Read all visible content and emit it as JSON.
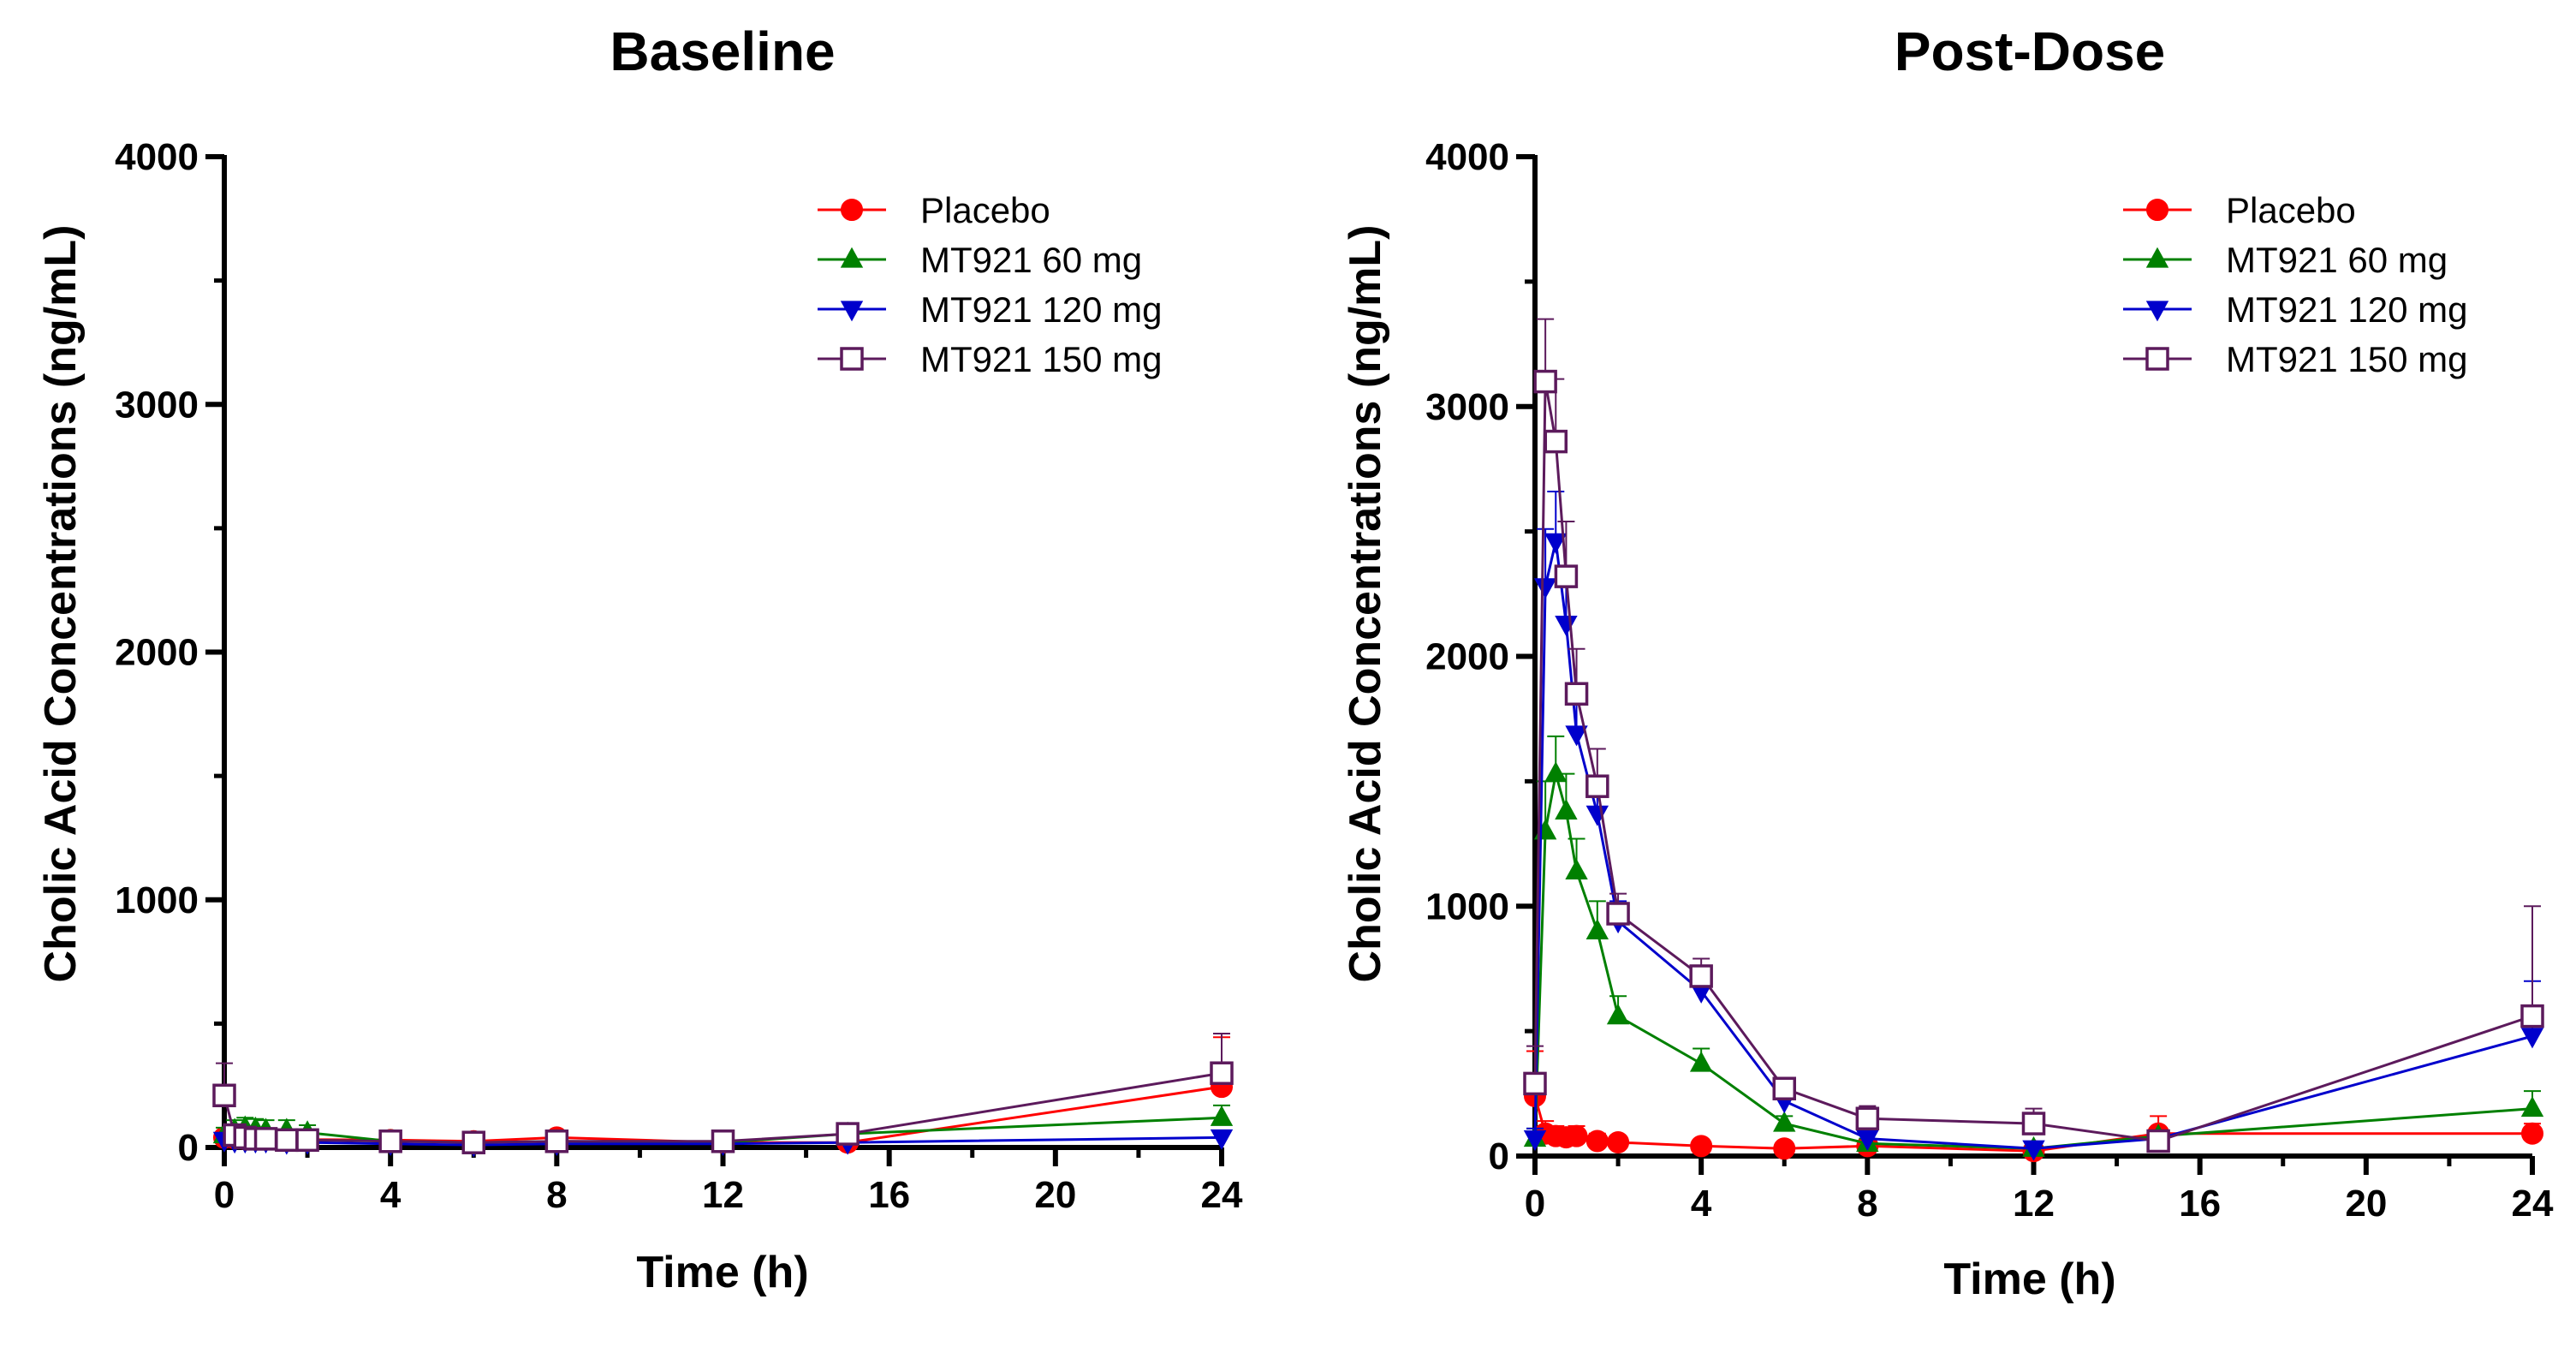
{
  "chart_data": [
    {
      "type": "line",
      "title": "Baseline",
      "xlabel": "Time (h)",
      "ylabel": "Cholic Acid Concentrations (ng/mL)",
      "xlim": [
        0,
        24
      ],
      "ylim": [
        0,
        4000
      ],
      "xticks": [
        0,
        4,
        8,
        12,
        16,
        20,
        24
      ],
      "yticks": [
        0,
        1000,
        2000,
        3000,
        4000
      ],
      "grid": false,
      "legend_position": "top-right",
      "series": [
        {
          "name": "Placebo",
          "color": "#ff0000",
          "marker": "circle",
          "x": [
            0,
            0.25,
            0.5,
            0.75,
            1,
            1.5,
            2,
            4,
            6,
            8,
            12,
            15,
            24
          ],
          "y": [
            40,
            38,
            35,
            35,
            38,
            35,
            32,
            30,
            25,
            40,
            20,
            20,
            245
          ],
          "err": [
            20,
            20,
            20,
            20,
            20,
            20,
            15,
            15,
            10,
            15,
            10,
            10,
            200
          ]
        },
        {
          "name": "MT921 60 mg",
          "color": "#008000",
          "marker": "triangle-up",
          "x": [
            0,
            0.25,
            0.5,
            0.75,
            1,
            1.5,
            2,
            4,
            6,
            8,
            12,
            15,
            24
          ],
          "y": [
            50,
            70,
            80,
            75,
            70,
            70,
            60,
            25,
            20,
            25,
            20,
            55,
            120
          ],
          "err": [
            30,
            40,
            40,
            40,
            40,
            40,
            30,
            15,
            10,
            15,
            10,
            20,
            50
          ]
        },
        {
          "name": "MT921 120 mg",
          "color": "#0000cc",
          "marker": "triangle-down",
          "x": [
            0,
            0.25,
            0.5,
            0.75,
            1,
            1.5,
            2,
            4,
            6,
            8,
            12,
            15,
            24
          ],
          "y": [
            30,
            25,
            25,
            25,
            25,
            20,
            20,
            15,
            10,
            15,
            15,
            20,
            40
          ],
          "err": [
            15,
            10,
            10,
            10,
            10,
            10,
            10,
            10,
            5,
            10,
            10,
            10,
            20
          ]
        },
        {
          "name": "MT921 150 mg",
          "color": "#5c1a5c",
          "marker": "square-open",
          "x": [
            0,
            0.25,
            0.5,
            0.75,
            1,
            1.5,
            2,
            4,
            6,
            8,
            12,
            15,
            24
          ],
          "y": [
            210,
            50,
            40,
            35,
            35,
            30,
            30,
            25,
            20,
            25,
            25,
            55,
            300
          ],
          "err": [
            130,
            20,
            15,
            15,
            15,
            15,
            10,
            10,
            10,
            10,
            10,
            20,
            160
          ]
        }
      ]
    },
    {
      "type": "line",
      "title": "Post-Dose",
      "xlabel": "Time (h)",
      "ylabel": "Cholic Acid Concentrations (ng/mL)",
      "xlim": [
        0,
        24
      ],
      "ylim": [
        0,
        4000
      ],
      "xticks": [
        0,
        4,
        8,
        12,
        16,
        20,
        24
      ],
      "yticks": [
        0,
        1000,
        2000,
        3000,
        4000
      ],
      "grid": false,
      "legend_position": "top-right",
      "series": [
        {
          "name": "Placebo",
          "color": "#ff0000",
          "marker": "circle",
          "x": [
            0,
            0.25,
            0.5,
            0.75,
            1,
            1.5,
            2,
            4,
            6,
            8,
            12,
            15,
            24
          ],
          "y": [
            240,
            90,
            80,
            75,
            80,
            60,
            55,
            40,
            30,
            40,
            20,
            90,
            90
          ],
          "err": [
            180,
            50,
            40,
            40,
            40,
            30,
            25,
            20,
            15,
            20,
            10,
            70,
            40
          ]
        },
        {
          "name": "MT921 60 mg",
          "color": "#008000",
          "marker": "triangle-up",
          "x": [
            0,
            0.25,
            0.5,
            0.75,
            1,
            1.5,
            2,
            4,
            6,
            8,
            12,
            15,
            24
          ],
          "y": [
            70,
            1300,
            1530,
            1380,
            1140,
            900,
            560,
            370,
            130,
            50,
            30,
            80,
            190
          ],
          "err": [
            40,
            200,
            150,
            150,
            130,
            120,
            80,
            60,
            30,
            20,
            10,
            20,
            70
          ]
        },
        {
          "name": "MT921 120 mg",
          "color": "#0000cc",
          "marker": "triangle-down",
          "x": [
            0,
            0.25,
            0.5,
            0.75,
            1,
            1.5,
            2,
            4,
            6,
            8,
            12,
            15,
            24
          ],
          "y": [
            70,
            2280,
            2460,
            2130,
            1690,
            1370,
            940,
            660,
            220,
            70,
            30,
            70,
            480
          ],
          "err": [
            40,
            230,
            200,
            200,
            150,
            120,
            80,
            60,
            40,
            20,
            15,
            20,
            220
          ]
        },
        {
          "name": "MT921 150 mg",
          "color": "#5c1a5c",
          "marker": "square-open",
          "x": [
            0,
            0.25,
            0.5,
            0.75,
            1,
            1.5,
            2,
            4,
            6,
            8,
            12,
            15,
            24
          ],
          "y": [
            290,
            3100,
            2860,
            2320,
            1850,
            1480,
            970,
            720,
            270,
            150,
            130,
            60,
            560
          ],
          "err": [
            150,
            250,
            250,
            220,
            180,
            150,
            80,
            70,
            40,
            50,
            60,
            20,
            440
          ]
        }
      ]
    }
  ]
}
